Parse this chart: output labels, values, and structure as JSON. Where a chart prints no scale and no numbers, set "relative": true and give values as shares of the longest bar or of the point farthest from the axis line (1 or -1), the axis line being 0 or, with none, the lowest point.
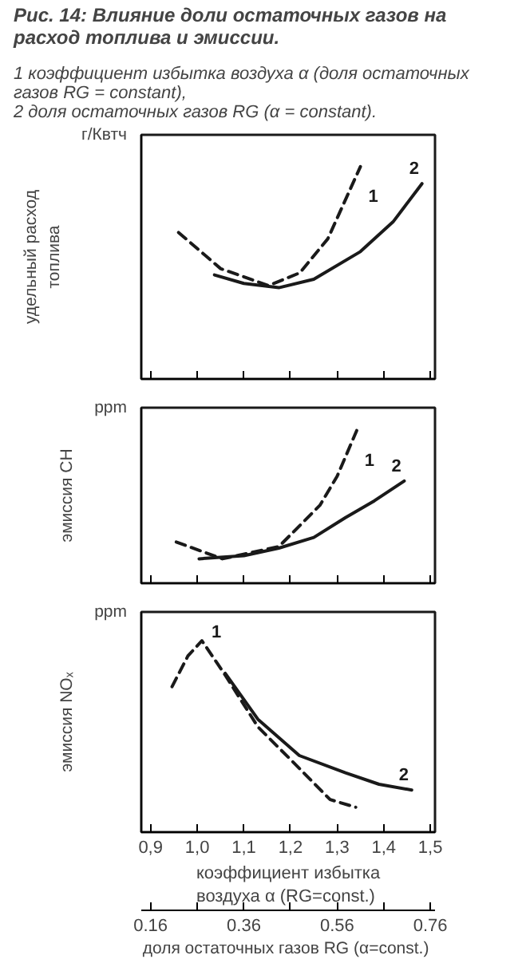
{
  "chart_data": [
    {
      "type": "line",
      "title": "Рис. 14: Влияние доли остаточных газов на расход топлива и эмиссии.",
      "subtitle": "1 коэффициент избытка воздуха α (доля остаточных газов RG = constant),\n2 доля остаточных газов RG (α = constant).",
      "ylabel": "удельный расход\nтоплива",
      "annotations": [
        "г/Квтч"
      ],
      "relative": true,
      "grid": false,
      "legend": false,
      "tick_labels": false,
      "xlim": [
        0.88,
        1.51
      ],
      "xticks": [
        {
          "value": 0.9,
          "label": null
        },
        {
          "value": 1.0,
          "label": null
        },
        {
          "value": 1.1,
          "label": null
        },
        {
          "value": 1.2,
          "label": null
        },
        {
          "value": 1.3,
          "label": null
        },
        {
          "value": 1.4,
          "label": null
        },
        {
          "value": 1.5,
          "label": null
        }
      ],
      "series": [
        {
          "name": "1",
          "color": "#1a1a1a",
          "line_style": "dashed",
          "x": [
            0.96,
            1.05,
            1.153,
            1.22,
            1.28,
            1.35
          ],
          "values": [
            0.69,
            0.52,
            0.44,
            0.5,
            0.66,
            1.0
          ]
        },
        {
          "name": "2",
          "color": "#1a1a1a",
          "line_style": "solid",
          "x": [
            1.037,
            1.1,
            1.175,
            1.25,
            1.35,
            1.42,
            1.482
          ],
          "values": [
            0.49,
            0.45,
            0.43,
            0.47,
            0.6,
            0.74,
            0.92
          ]
        }
      ]
    },
    {
      "type": "line",
      "ylabel": "эмиссия CH",
      "annotations": [
        "ppm"
      ],
      "relative": true,
      "grid": false,
      "legend": false,
      "tick_labels": false,
      "xlim": [
        0.88,
        1.51
      ],
      "xticks": [
        {
          "value": 0.9,
          "label": null
        },
        {
          "value": 1.0,
          "label": null
        },
        {
          "value": 1.1,
          "label": null
        },
        {
          "value": 1.2,
          "label": null
        },
        {
          "value": 1.3,
          "label": null
        },
        {
          "value": 1.4,
          "label": null
        },
        {
          "value": 1.5,
          "label": null
        }
      ],
      "series": [
        {
          "name": "1",
          "color": "#1a1a1a",
          "line_style": "dashed",
          "x": [
            0.955,
            1.054,
            1.175,
            1.263,
            1.3,
            1.342
          ],
          "values": [
            0.27,
            0.16,
            0.24,
            0.51,
            0.7,
            1.0
          ]
        },
        {
          "name": "2",
          "color": "#1a1a1a",
          "line_style": "solid",
          "x": [
            1.004,
            1.1,
            1.175,
            1.25,
            1.318,
            1.38,
            1.444
          ],
          "values": [
            0.16,
            0.18,
            0.23,
            0.3,
            0.43,
            0.54,
            0.67
          ]
        }
      ]
    },
    {
      "type": "line",
      "ylabel": "эмиссия NOₓ",
      "xlabel": "коэффициент избытка\nвоздуха α  (RG=const.)",
      "x2label": "доля остаточных газов RG  (α=const.)",
      "annotations": [
        "ppm"
      ],
      "relative": true,
      "grid": false,
      "legend": false,
      "tick_labels": "x",
      "xlim": [
        0.88,
        1.51
      ],
      "xticks": [
        {
          "value": 0.9,
          "label": "0,9"
        },
        {
          "value": 1.0,
          "label": "1,0"
        },
        {
          "value": 1.1,
          "label": "1,1"
        },
        {
          "value": 1.2,
          "label": "1,2"
        },
        {
          "value": 1.3,
          "label": "1,3"
        },
        {
          "value": 1.4,
          "label": "1,4"
        },
        {
          "value": 1.5,
          "label": "1,5"
        }
      ],
      "x2lim": [
        0.14,
        0.77
      ],
      "x2ticks": [
        0.16,
        {
          "value": 0.26,
          "label": null
        },
        0.36,
        {
          "value": 0.46,
          "label": null
        },
        0.56,
        {
          "value": 0.66,
          "label": null
        },
        0.76
      ],
      "series": [
        {
          "name": "1",
          "color": "#1a1a1a",
          "line_style": "dashed",
          "x": [
            0.946,
            0.98,
            1.01,
            1.06,
            1.13,
            1.208,
            1.285,
            1.34
          ],
          "values": [
            0.76,
            0.92,
            1.0,
            0.82,
            0.55,
            0.36,
            0.17,
            0.13
          ]
        },
        {
          "name": "2",
          "color": "#1a1a1a",
          "line_style": "solid",
          "x": [
            1.06,
            1.13,
            1.219,
            1.318,
            1.39,
            1.46
          ],
          "values": [
            0.83,
            0.59,
            0.4,
            0.31,
            0.25,
            0.22
          ]
        }
      ]
    }
  ]
}
